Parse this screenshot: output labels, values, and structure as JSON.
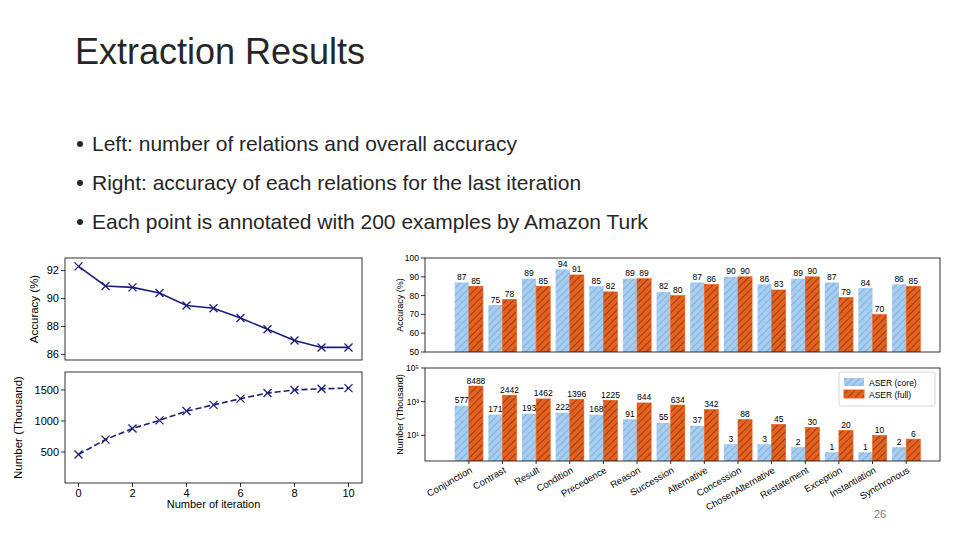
{
  "slide": {
    "title": "Extraction Results",
    "bullets": [
      "Left: number of relations and overall accuracy",
      "Right: accuracy of each relations for the last iteration",
      "Each point is annotated with 200 examples by Amazon Turk"
    ],
    "page_number": 26
  },
  "chart_data": [
    {
      "type": "line",
      "y_label": "Accuracy (%)",
      "x": [
        0,
        1,
        2,
        3,
        4,
        5,
        6,
        7,
        8,
        9,
        10
      ],
      "series": [
        {
          "color": "#1c1c7a",
          "marker": "x",
          "line_style": "solid",
          "values": [
            92.3,
            90.9,
            90.8,
            90.4,
            89.5,
            89.3,
            88.6,
            87.8,
            87.0,
            86.5,
            86.5
          ]
        }
      ],
      "xlim": [
        -0.5,
        10.5
      ],
      "ylim": [
        85.6,
        92.9
      ],
      "yticks": [
        86,
        88,
        90,
        92
      ],
      "tick_labels": "y",
      "grid": false
    },
    {
      "type": "line",
      "x_label": "Number of iteration",
      "y_label": "Number (Thousand)",
      "x": [
        0,
        1,
        2,
        3,
        4,
        5,
        6,
        7,
        8,
        9,
        10
      ],
      "series": [
        {
          "color": "#1c1c7a",
          "marker": "x",
          "line_style": "dashed",
          "values": [
            460,
            700,
            880,
            1010,
            1160,
            1260,
            1360,
            1450,
            1500,
            1520,
            1530
          ]
        }
      ],
      "xlim": [
        -0.5,
        10.5
      ],
      "ylim": [
        0,
        1790
      ],
      "xticks": [
        0,
        2,
        4,
        6,
        8,
        10
      ],
      "yticks": [
        500,
        1000,
        1500
      ],
      "grid": false
    },
    {
      "type": "bar",
      "y_label": "Accuracy (%)",
      "series": [
        {
          "color": "#a9cdef",
          "values": [
            87,
            75,
            89,
            94,
            85,
            89,
            82,
            87,
            90,
            86,
            89,
            87,
            84,
            86
          ]
        },
        {
          "color": "#e8601c",
          "values": [
            85,
            78,
            85,
            91,
            82,
            89,
            80,
            86,
            90,
            83,
            90,
            79,
            70,
            85
          ]
        }
      ],
      "ylim": [
        50,
        100
      ],
      "yticks": [
        50,
        60,
        70,
        80,
        90,
        100
      ],
      "data_labels": true,
      "tick_labels": "y",
      "grid": false
    },
    {
      "type": "bar",
      "y_label": "Number (Thousand)",
      "categories": [
        "Conjunction",
        "Contrast",
        "Result",
        "Condition",
        "Precedence",
        "Reason",
        "Succession",
        "Alternative",
        "Concession",
        "ChosenAlternative",
        "Restatement",
        "Exception",
        "Instantiation",
        "Synchronous"
      ],
      "series": [
        {
          "name": "ASER (core)",
          "color": "#a9cdef",
          "values": [
            577,
            171,
            193,
            222,
            168,
            91,
            55,
            37,
            3,
            3,
            2,
            1,
            1,
            2
          ]
        },
        {
          "name": "ASER (full)",
          "color": "#e8601c",
          "values": [
            8488,
            2442,
            1462,
            1396,
            1225,
            844,
            634,
            342,
            88,
            45,
            30,
            20,
            10,
            6
          ]
        }
      ],
      "log": "y",
      "ylim": [
        0.3,
        100000
      ],
      "yticks": [
        {
          "value": 10,
          "label": "10¹"
        },
        {
          "value": 1000,
          "label": "10³"
        },
        {
          "value": 100000,
          "label": "10⁵"
        }
      ],
      "data_labels": true,
      "legend": "upper right",
      "grid": false
    }
  ]
}
